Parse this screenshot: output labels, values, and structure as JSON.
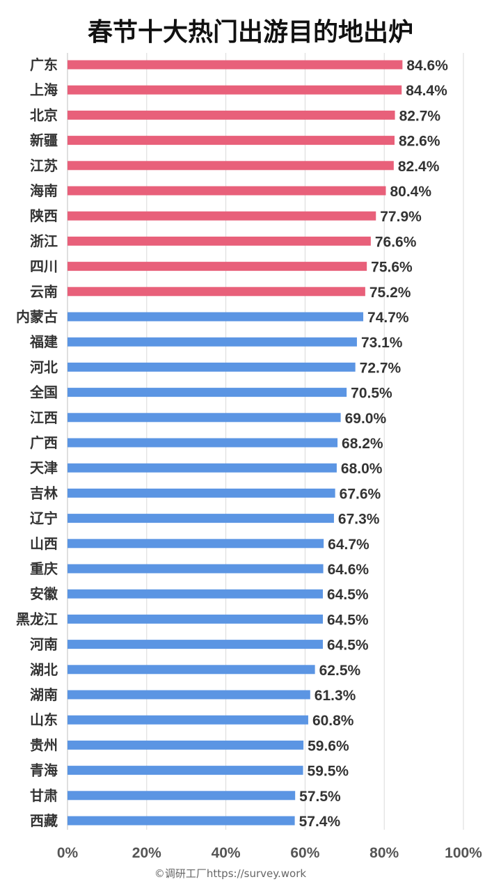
{
  "footer": "©调研工厂https://survey.work",
  "chart_data": {
    "type": "bar",
    "orientation": "horizontal",
    "title": "春节十大热门出游目的地出炉",
    "xlabel": "",
    "ylabel": "",
    "xlim": [
      0,
      100
    ],
    "ticks": [
      "0%",
      "20%",
      "40%",
      "60%",
      "80%",
      "100%"
    ],
    "tick_values": [
      0,
      20,
      40,
      60,
      80,
      100
    ],
    "grid": true,
    "colors": {
      "top10": "#e8607a",
      "other": "#5b95e3"
    },
    "categories": [
      "广东",
      "上海",
      "北京",
      "新疆",
      "江苏",
      "海南",
      "陕西",
      "浙江",
      "四川",
      "云南",
      "内蒙古",
      "福建",
      "河北",
      "全国",
      "江西",
      "广西",
      "天津",
      "吉林",
      "辽宁",
      "山西",
      "重庆",
      "安徽",
      "黑龙江",
      "河南",
      "湖北",
      "湖南",
      "山东",
      "贵州",
      "青海",
      "甘肃",
      "西藏"
    ],
    "values": [
      84.6,
      84.4,
      82.7,
      82.6,
      82.4,
      80.4,
      77.9,
      76.6,
      75.6,
      75.2,
      74.7,
      73.1,
      72.7,
      70.5,
      69.0,
      68.2,
      68.0,
      67.6,
      67.3,
      64.7,
      64.6,
      64.5,
      64.5,
      64.5,
      62.5,
      61.3,
      60.8,
      59.6,
      59.5,
      57.5,
      57.4
    ],
    "labels": [
      "84.6%",
      "84.4%",
      "82.7%",
      "82.6%",
      "82.4%",
      "80.4%",
      "77.9%",
      "76.6%",
      "75.6%",
      "75.2%",
      "74.7%",
      "73.1%",
      "72.7%",
      "70.5%",
      "69.0%",
      "68.2%",
      "68.0%",
      "67.6%",
      "67.3%",
      "64.7%",
      "64.6%",
      "64.5%",
      "64.5%",
      "64.5%",
      "62.5%",
      "61.3%",
      "60.8%",
      "59.6%",
      "59.5%",
      "57.5%",
      "57.4%"
    ],
    "highlight_top": 10
  }
}
